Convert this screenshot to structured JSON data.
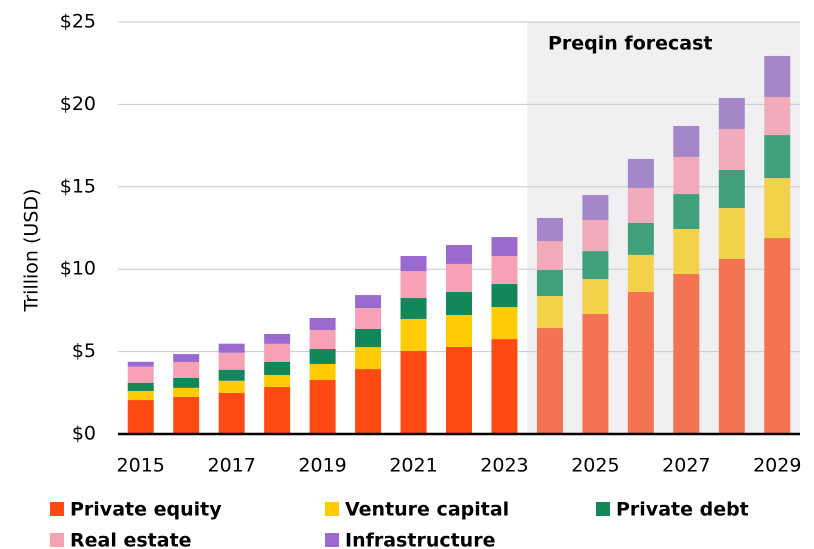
{
  "chart_data": {
    "type": "stacked_bar",
    "y_label": "Trillion (USD)",
    "categories": [
      "2015",
      null,
      "2017",
      null,
      "2019",
      null,
      "2021",
      null,
      "2023",
      null,
      "2025",
      null,
      "2027",
      null,
      "2029"
    ],
    "series": [
      {
        "name": "Private equity",
        "color": "#ff4a14",
        "forecast_color": "#f47352",
        "values": [
          2.06,
          2.25,
          2.5,
          2.85,
          3.28,
          3.94,
          5.04,
          5.28,
          5.76,
          6.43,
          7.28,
          8.62,
          9.71,
          10.62,
          11.89
        ]
      },
      {
        "name": "Venture capital",
        "color": "#ffcb05",
        "forecast_color": "#f4d14b",
        "values": [
          0.55,
          0.55,
          0.73,
          0.73,
          0.97,
          1.33,
          1.94,
          1.94,
          1.94,
          1.94,
          2.12,
          2.25,
          2.73,
          3.09,
          3.64
        ]
      },
      {
        "name": "Private debt",
        "color": "#12875a",
        "forecast_color": "#40a07c",
        "values": [
          0.5,
          0.6,
          0.67,
          0.79,
          0.91,
          1.1,
          1.27,
          1.4,
          1.4,
          1.58,
          1.7,
          1.94,
          2.12,
          2.31,
          2.61
        ]
      },
      {
        "name": "Real estate",
        "color": "#f8a0b6",
        "forecast_color": "#f2abba",
        "values": [
          0.97,
          0.97,
          1.03,
          1.1,
          1.15,
          1.27,
          1.64,
          1.7,
          1.7,
          1.76,
          1.88,
          2.12,
          2.25,
          2.49,
          2.31
        ]
      },
      {
        "name": "Infrastructure",
        "color": "#9a6ad0",
        "forecast_color": "#a487c9",
        "values": [
          0.3,
          0.48,
          0.55,
          0.6,
          0.73,
          0.79,
          0.91,
          1.15,
          1.15,
          1.4,
          1.52,
          1.76,
          1.88,
          1.88,
          2.49
        ]
      }
    ],
    "forecast": {
      "label": "Preqin forecast",
      "from_index": 9
    },
    "ylim": [
      0,
      25
    ],
    "yticks": [
      {
        "value": 0,
        "label": "$0"
      },
      {
        "value": 5,
        "label": "$5"
      },
      {
        "value": 10,
        "label": "$10"
      },
      {
        "value": 15,
        "label": "$15"
      },
      {
        "value": 20,
        "label": "$20"
      },
      {
        "value": 25,
        "label": "$25"
      }
    ],
    "grid": true,
    "legend": "bottom"
  }
}
